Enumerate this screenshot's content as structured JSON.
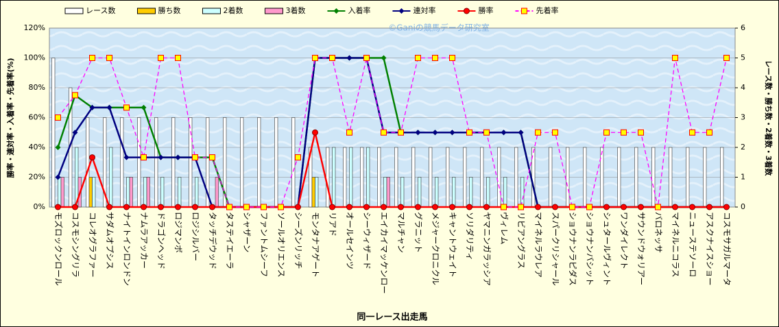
{
  "chart_data": {
    "type": "bar",
    "watermark": "©Ganiの競馬データ研究室",
    "xlabel": "同一レース出走馬",
    "ylabel": "勝率・連対率・入着率・先着率(%)",
    "y2label": "レース数・勝ち数・2着数・3着数",
    "categories": [
      "モズロックンロール",
      "コスモシングリラ",
      "コレオグラファー",
      "サダムオプシス",
      "ナイトインロンドン",
      "ナムラアッカー",
      "ドラゴンヘッド",
      "ロジマンボ",
      "ロジシルバー",
      "タッチデウッド",
      "タステイエーラ",
      "シャザーン",
      "ファントムシーフ",
      "ソールオリエンス",
      "シーズンリッチ",
      "モンタナアゲート",
      "リアド",
      "オールセインツ",
      "シーウィザード",
      "エイカイマッケンロー",
      "マルチャン",
      "グラニット",
      "メジャークロニクル",
      "キャントウェイト",
      "ソリダリティ",
      "ヤマニンガラッシア",
      "ヴィレム",
      "リビアングラス",
      "マイネルラウレア",
      "スパークリシャール",
      "ショウナンラピダス",
      "ショウナンバシット",
      "シュタールヴィント",
      "ワンダイレクト",
      "サウンドウォリアー",
      "バロネッサ",
      "マイネルニコラス",
      "ニューステソーロ",
      "アスクナイスショー",
      "コスモサガルマータ"
    ],
    "ylim": [
      0,
      120
    ],
    "yticks": [
      {
        "value": 0,
        "label": "0%"
      },
      {
        "value": 20,
        "label": "20%"
      },
      {
        "value": 40,
        "label": "40%"
      },
      {
        "value": 60,
        "label": "60%"
      },
      {
        "value": 80,
        "label": "80%"
      },
      {
        "value": 100,
        "label": "100%"
      },
      {
        "value": 120,
        "label": "120%"
      }
    ],
    "y2lim": [
      0,
      6
    ],
    "y2ticks": [
      0,
      1,
      2,
      3,
      4,
      5,
      6
    ],
    "grid": true,
    "series": [
      {
        "name": "レース数",
        "type": "bar",
        "axis": "y2",
        "color": "#ffffff",
        "values": [
          5,
          4,
          3,
          3,
          3,
          3,
          3,
          3,
          3,
          3,
          3,
          3,
          3,
          3,
          3,
          2,
          2,
          2,
          2,
          2,
          2,
          2,
          2,
          2,
          2,
          2,
          2,
          2,
          2,
          2,
          2,
          2,
          2,
          2,
          2,
          2,
          2,
          2,
          2,
          2
        ]
      },
      {
        "name": "勝ち数",
        "type": "bar",
        "axis": "y2",
        "color": "#ffcc00",
        "values": [
          0,
          0,
          1,
          0,
          0,
          0,
          0,
          0,
          0,
          0,
          0,
          0,
          0,
          0,
          0,
          1,
          0,
          0,
          0,
          0,
          0,
          0,
          0,
          0,
          0,
          0,
          0,
          0,
          0,
          0,
          0,
          0,
          0,
          0,
          0,
          0,
          0,
          0,
          0,
          0
        ]
      },
      {
        "name": "2着数",
        "type": "bar",
        "axis": "y2",
        "color": "#ccffff",
        "values": [
          1,
          2,
          1,
          2,
          1,
          1,
          1,
          1,
          1,
          0,
          0,
          0,
          0,
          0,
          0,
          1,
          2,
          2,
          2,
          1,
          1,
          1,
          1,
          1,
          1,
          1,
          1,
          1,
          0,
          0,
          0,
          0,
          0,
          0,
          0,
          0,
          0,
          0,
          0,
          0
        ]
      },
      {
        "name": "3着数",
        "type": "bar",
        "axis": "y2",
        "color": "#ff99cc",
        "values": [
          1,
          1,
          0,
          0,
          1,
          1,
          0,
          0,
          0,
          1,
          0,
          0,
          0,
          0,
          0,
          0,
          0,
          0,
          0,
          1,
          0,
          0,
          0,
          0,
          0,
          0,
          0,
          0,
          0,
          0,
          0,
          0,
          0,
          0,
          0,
          0,
          0,
          0,
          0,
          0
        ]
      },
      {
        "name": "入着率",
        "type": "line",
        "color": "#008000",
        "marker": "diamond",
        "values": [
          40,
          75,
          66.7,
          66.7,
          66.7,
          66.7,
          33.3,
          33.3,
          33.3,
          33.3,
          0,
          0,
          0,
          0,
          0,
          100,
          100,
          100,
          100,
          100,
          50,
          50,
          50,
          50,
          50,
          50,
          50,
          50,
          0,
          0,
          0,
          0,
          0,
          0,
          0,
          0,
          0,
          0,
          0,
          0
        ]
      },
      {
        "name": "連対率",
        "type": "line",
        "color": "#000080",
        "marker": "diamond",
        "values": [
          20,
          50,
          66.7,
          66.7,
          33.3,
          33.3,
          33.3,
          33.3,
          33.3,
          0,
          0,
          0,
          0,
          0,
          0,
          100,
          100,
          100,
          100,
          50,
          50,
          50,
          50,
          50,
          50,
          50,
          50,
          50,
          0,
          0,
          0,
          0,
          0,
          0,
          0,
          0,
          0,
          0,
          0,
          0
        ]
      },
      {
        "name": "勝率",
        "type": "line",
        "color": "#ff0000",
        "marker": "circle",
        "values": [
          0,
          0,
          33.3,
          0,
          0,
          0,
          0,
          0,
          0,
          0,
          0,
          0,
          0,
          0,
          0,
          50,
          0,
          0,
          0,
          0,
          0,
          0,
          0,
          0,
          0,
          0,
          0,
          0,
          0,
          0,
          0,
          0,
          0,
          0,
          0,
          0,
          0,
          0,
          0,
          0
        ]
      },
      {
        "name": "先着率",
        "type": "line",
        "color": "#ff00ff",
        "marker": "square",
        "marker_color": "#ffff00",
        "dash": true,
        "values": [
          60,
          75,
          100,
          100,
          66.7,
          33.3,
          100,
          100,
          33.3,
          33.3,
          0,
          0,
          0,
          0,
          33.3,
          100,
          100,
          50,
          100,
          50,
          50,
          100,
          100,
          100,
          50,
          50,
          0,
          0,
          50,
          50,
          0,
          0,
          50,
          50,
          50,
          0,
          100,
          50,
          50,
          100
        ]
      }
    ]
  }
}
